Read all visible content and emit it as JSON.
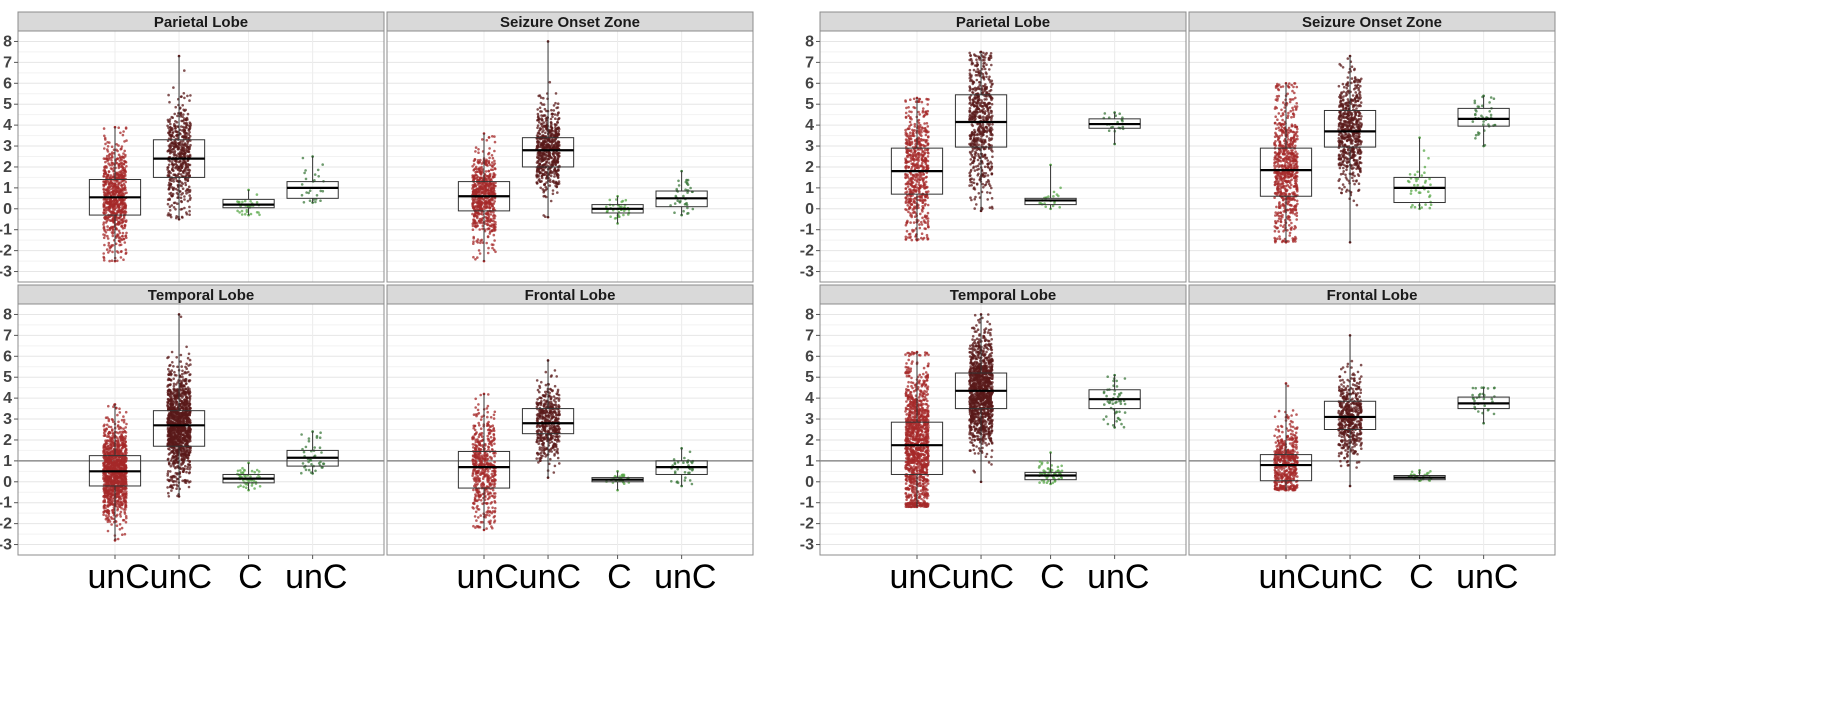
{
  "chart_data": [
    {
      "type": "box",
      "categories": [
        "unC",
        "unC",
        "C",
        "unC"
      ],
      "ylim": [
        -3.5,
        8.5
      ],
      "yticks": [
        -3,
        -2,
        -1,
        0,
        1,
        2,
        3,
        4,
        5,
        6,
        7,
        8
      ],
      "panels": [
        {
          "title": "Parietal Lobe",
          "hline": null,
          "boxes": [
            {
              "q1": -0.3,
              "median": 0.55,
              "q3": 1.4,
              "min": -2.5,
              "max": 3.9,
              "n": 700,
              "color": "#a52a2a"
            },
            {
              "q1": 1.5,
              "median": 2.4,
              "q3": 3.3,
              "min": -0.5,
              "max": 7.3,
              "n": 500,
              "color": "#5a1a1a"
            },
            {
              "q1": 0.05,
              "median": 0.2,
              "q3": 0.45,
              "min": -0.3,
              "max": 0.9,
              "n": 30,
              "color": "#5aa84a"
            },
            {
              "q1": 0.5,
              "median": 1.0,
              "q3": 1.3,
              "min": 0.3,
              "max": 2.5,
              "n": 25,
              "color": "#3d7a3d"
            }
          ]
        },
        {
          "title": "Seizure Onset Zone",
          "hline": null,
          "boxes": [
            {
              "q1": -0.1,
              "median": 0.6,
              "q3": 1.3,
              "min": -2.5,
              "max": 3.6,
              "n": 600,
              "color": "#a52a2a"
            },
            {
              "q1": 2.0,
              "median": 2.8,
              "q3": 3.4,
              "min": -0.4,
              "max": 8.0,
              "n": 600,
              "color": "#5a1a1a"
            },
            {
              "q1": -0.2,
              "median": 0.0,
              "q3": 0.2,
              "min": -0.7,
              "max": 0.6,
              "n": 40,
              "color": "#5aa84a"
            },
            {
              "q1": 0.1,
              "median": 0.5,
              "q3": 0.85,
              "min": -0.3,
              "max": 1.8,
              "n": 40,
              "color": "#3d7a3d"
            }
          ]
        },
        {
          "title": "Temporal Lobe",
          "hline": 1,
          "boxes": [
            {
              "q1": -0.2,
              "median": 0.5,
              "q3": 1.25,
              "min": -2.8,
              "max": 3.7,
              "n": 1200,
              "color": "#a52a2a"
            },
            {
              "q1": 1.7,
              "median": 2.7,
              "q3": 3.4,
              "min": -0.7,
              "max": 8.0,
              "n": 1200,
              "color": "#5a1a1a"
            },
            {
              "q1": -0.05,
              "median": 0.15,
              "q3": 0.35,
              "min": -0.4,
              "max": 0.9,
              "n": 50,
              "color": "#5aa84a"
            },
            {
              "q1": 0.75,
              "median": 1.15,
              "q3": 1.5,
              "min": 0.4,
              "max": 2.4,
              "n": 40,
              "color": "#3d7a3d"
            }
          ]
        },
        {
          "title": "Frontal Lobe",
          "hline": 1,
          "boxes": [
            {
              "q1": -0.3,
              "median": 0.7,
              "q3": 1.45,
              "min": -2.3,
              "max": 4.2,
              "n": 500,
              "color": "#a52a2a"
            },
            {
              "q1": 2.3,
              "median": 2.8,
              "q3": 3.5,
              "min": 0.2,
              "max": 5.8,
              "n": 450,
              "color": "#5a1a1a"
            },
            {
              "q1": 0.0,
              "median": 0.1,
              "q3": 0.2,
              "min": -0.4,
              "max": 0.5,
              "n": 30,
              "color": "#5aa84a"
            },
            {
              "q1": 0.35,
              "median": 0.7,
              "q3": 1.0,
              "min": -0.2,
              "max": 1.6,
              "n": 35,
              "color": "#3d7a3d"
            }
          ]
        }
      ]
    },
    {
      "type": "box",
      "categories": [
        "unC",
        "unC",
        "C",
        "unC"
      ],
      "ylim": [
        -3.5,
        8.5
      ],
      "yticks": [
        -3,
        -2,
        -1,
        0,
        1,
        2,
        3,
        4,
        5,
        6,
        7,
        8
      ],
      "panels": [
        {
          "title": "Parietal Lobe",
          "hline": null,
          "boxes": [
            {
              "q1": 0.7,
              "median": 1.8,
              "q3": 2.9,
              "min": -1.5,
              "max": 5.3,
              "n": 600,
              "color": "#a52a2a"
            },
            {
              "q1": 2.95,
              "median": 4.15,
              "q3": 5.45,
              "min": -0.1,
              "max": 7.5,
              "n": 600,
              "color": "#5a1a1a"
            },
            {
              "q1": 0.2,
              "median": 0.4,
              "q3": 0.5,
              "min": 0.0,
              "max": 2.1,
              "n": 20,
              "color": "#5aa84a"
            },
            {
              "q1": 3.85,
              "median": 4.05,
              "q3": 4.3,
              "min": 3.1,
              "max": 4.6,
              "n": 20,
              "color": "#3d7a3d"
            }
          ]
        },
        {
          "title": "Seizure Onset Zone",
          "hline": null,
          "boxes": [
            {
              "q1": 0.6,
              "median": 1.85,
              "q3": 2.9,
              "min": -1.6,
              "max": 6.0,
              "n": 700,
              "color": "#a52a2a"
            },
            {
              "q1": 2.95,
              "median": 3.7,
              "q3": 4.7,
              "min": -1.6,
              "max": 7.3,
              "n": 600,
              "color": "#5a1a1a"
            },
            {
              "q1": 0.3,
              "median": 1.0,
              "q3": 1.5,
              "min": 0.0,
              "max": 3.4,
              "n": 40,
              "color": "#5aa84a"
            },
            {
              "q1": 3.95,
              "median": 4.3,
              "q3": 4.8,
              "min": 3.0,
              "max": 5.4,
              "n": 40,
              "color": "#3d7a3d"
            }
          ]
        },
        {
          "title": "Temporal Lobe",
          "hline": 1,
          "boxes": [
            {
              "q1": 0.35,
              "median": 1.75,
              "q3": 2.85,
              "min": -1.2,
              "max": 6.2,
              "n": 1200,
              "color": "#a52a2a"
            },
            {
              "q1": 3.5,
              "median": 4.35,
              "q3": 5.2,
              "min": 0.0,
              "max": 8.0,
              "n": 1200,
              "color": "#5a1a1a"
            },
            {
              "q1": 0.1,
              "median": 0.3,
              "q3": 0.45,
              "min": -0.1,
              "max": 1.4,
              "n": 60,
              "color": "#5aa84a"
            },
            {
              "q1": 3.5,
              "median": 3.95,
              "q3": 4.4,
              "min": 2.6,
              "max": 5.1,
              "n": 50,
              "color": "#3d7a3d"
            }
          ]
        },
        {
          "title": "Frontal Lobe",
          "hline": 1,
          "boxes": [
            {
              "q1": 0.05,
              "median": 0.8,
              "q3": 1.3,
              "min": -0.4,
              "max": 4.7,
              "n": 500,
              "color": "#a52a2a"
            },
            {
              "q1": 2.5,
              "median": 3.1,
              "q3": 3.85,
              "min": -0.2,
              "max": 7.0,
              "n": 500,
              "color": "#5a1a1a"
            },
            {
              "q1": 0.1,
              "median": 0.2,
              "q3": 0.3,
              "min": 0.05,
              "max": 0.55,
              "n": 25,
              "color": "#5aa84a"
            },
            {
              "q1": 3.5,
              "median": 3.75,
              "q3": 4.05,
              "min": 2.8,
              "max": 4.5,
              "n": 30,
              "color": "#3d7a3d"
            }
          ]
        }
      ]
    }
  ]
}
